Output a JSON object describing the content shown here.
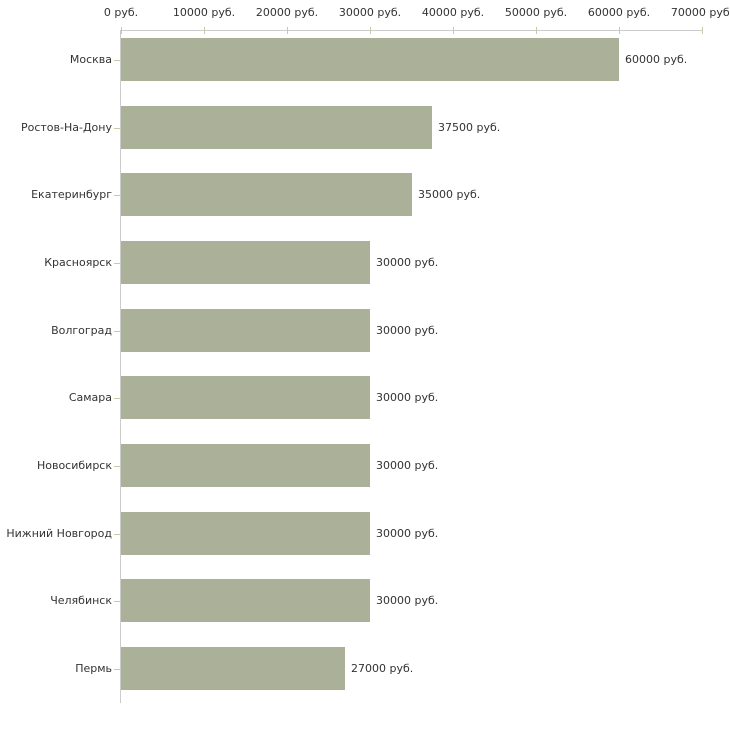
{
  "chart_data": {
    "type": "bar",
    "orientation": "horizontal",
    "title": "",
    "xlabel": "",
    "ylabel": "",
    "unit": "руб.",
    "categories": [
      "Москва",
      "Ростов-На-Дону",
      "Екатеринбург",
      "Красноярск",
      "Волгоград",
      "Самара",
      "Новосибирск",
      "Нижний Новгород",
      "Челябинск",
      "Пермь"
    ],
    "values": [
      60000,
      37500,
      35000,
      30000,
      30000,
      30000,
      30000,
      30000,
      30000,
      27000
    ],
    "value_labels": [
      "60000 руб.",
      "37500 руб.",
      "35000 руб.",
      "30000 руб.",
      "30000 руб.",
      "30000 руб.",
      "30000 руб.",
      "30000 руб.",
      "30000 руб.",
      "27000 руб."
    ],
    "x_ticks": [
      0,
      10000,
      20000,
      30000,
      40000,
      50000,
      60000,
      70000
    ],
    "x_tick_labels": [
      "0 руб.",
      "10000 руб.",
      "20000 руб.",
      "30000 руб.",
      "40000 руб.",
      "50000 руб.",
      "60000 руб.",
      "70000 руб."
    ],
    "xlim": [
      0,
      70000
    ],
    "grid": false,
    "legend": false,
    "colors": {
      "bar": "#abb198",
      "axis_line": "#cccccc",
      "tick": "#c9c9a6",
      "text": "#333333",
      "background": "#ffffff"
    }
  }
}
